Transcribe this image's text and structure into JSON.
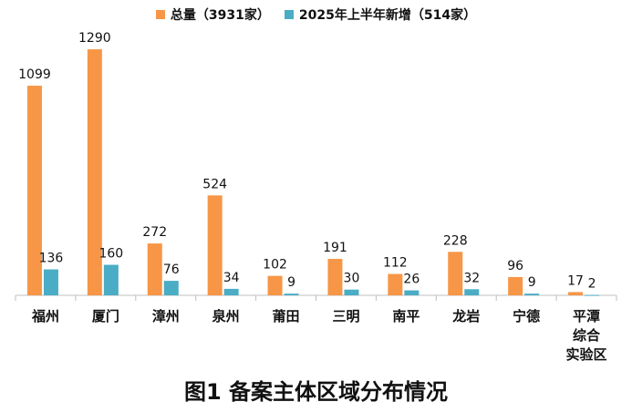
{
  "chart_data": {
    "type": "bar",
    "categories": [
      "福州",
      "厦门",
      "漳州",
      "泉州",
      "莆田",
      "三明",
      "南平",
      "龙岩",
      "宁德",
      "平潭综合实验区"
    ],
    "category_lines": [
      [
        "福州"
      ],
      [
        "厦门"
      ],
      [
        "漳州"
      ],
      [
        "泉州"
      ],
      [
        "莆田"
      ],
      [
        "三明"
      ],
      [
        "南平"
      ],
      [
        "龙岩"
      ],
      [
        "宁德"
      ],
      [
        "平潭",
        "综合",
        "实验区"
      ]
    ],
    "series": [
      {
        "name": "总量（3931家）",
        "color": "#F79646",
        "values": [
          1099,
          1290,
          272,
          524,
          102,
          191,
          112,
          228,
          96,
          17
        ]
      },
      {
        "name": "2025年上半年新增（514家）",
        "color": "#4BACC6",
        "values": [
          136,
          160,
          76,
          34,
          9,
          30,
          26,
          32,
          9,
          2
        ]
      }
    ],
    "ylim": [
      0,
      1300
    ],
    "grid": false,
    "legend_position": "top",
    "caption": "图1  备案主体区域分布情况"
  }
}
